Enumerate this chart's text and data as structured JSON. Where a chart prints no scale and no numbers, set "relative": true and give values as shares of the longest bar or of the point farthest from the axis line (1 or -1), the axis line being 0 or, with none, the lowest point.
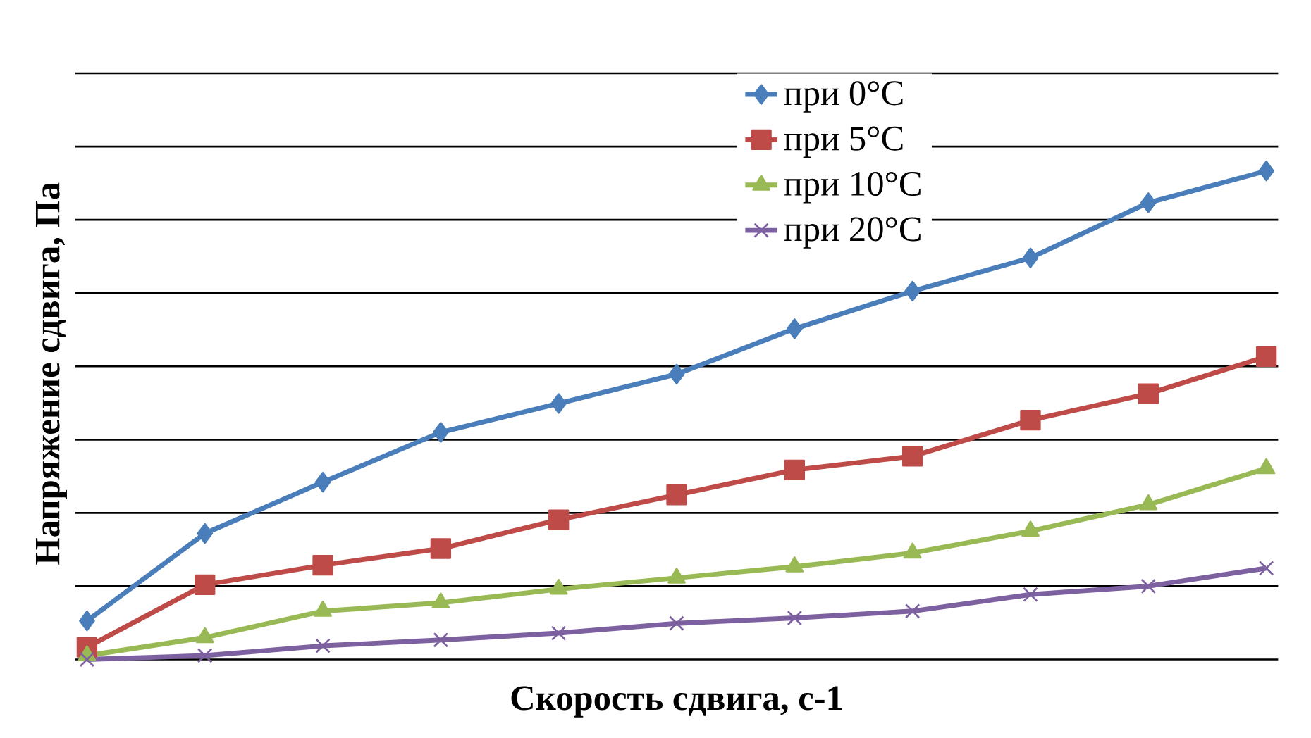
{
  "chart_data": {
    "type": "line",
    "relative": true,
    "xlabel": "Скорость сдвига, с-1",
    "ylabel": "Напряжение сдвига, Па",
    "categories": [
      null,
      null,
      null,
      null,
      null,
      null,
      null,
      null,
      null,
      null,
      null
    ],
    "grid": "y",
    "legend": "top right",
    "series": [
      {
        "name": "при 0°C",
        "color": "#4a7ebb",
        "marker": "diamond",
        "values": [
          0.079,
          0.258,
          0.363,
          0.465,
          0.524,
          0.584,
          0.677,
          0.754,
          0.822,
          0.935,
          1
        ]
      },
      {
        "name": "при 5°C",
        "color": "#be4b48",
        "marker": "square",
        "values": [
          0.025,
          0.153,
          0.193,
          0.227,
          0.286,
          0.337,
          0.388,
          0.416,
          0.49,
          0.544,
          0.62
        ]
      },
      {
        "name": "при 10°C",
        "color": "#98b954",
        "marker": "triangle",
        "values": [
          0.008,
          0.045,
          0.099,
          0.116,
          0.144,
          0.167,
          0.19,
          0.218,
          0.263,
          0.317,
          0.391
        ]
      },
      {
        "name": "при 20°C",
        "color": "#7d60a0",
        "marker": "cross",
        "values": [
          0,
          0.008,
          0.028,
          0.04,
          0.054,
          0.074,
          0.085,
          0.099,
          0.133,
          0.15,
          0.187
        ]
      }
    ]
  }
}
